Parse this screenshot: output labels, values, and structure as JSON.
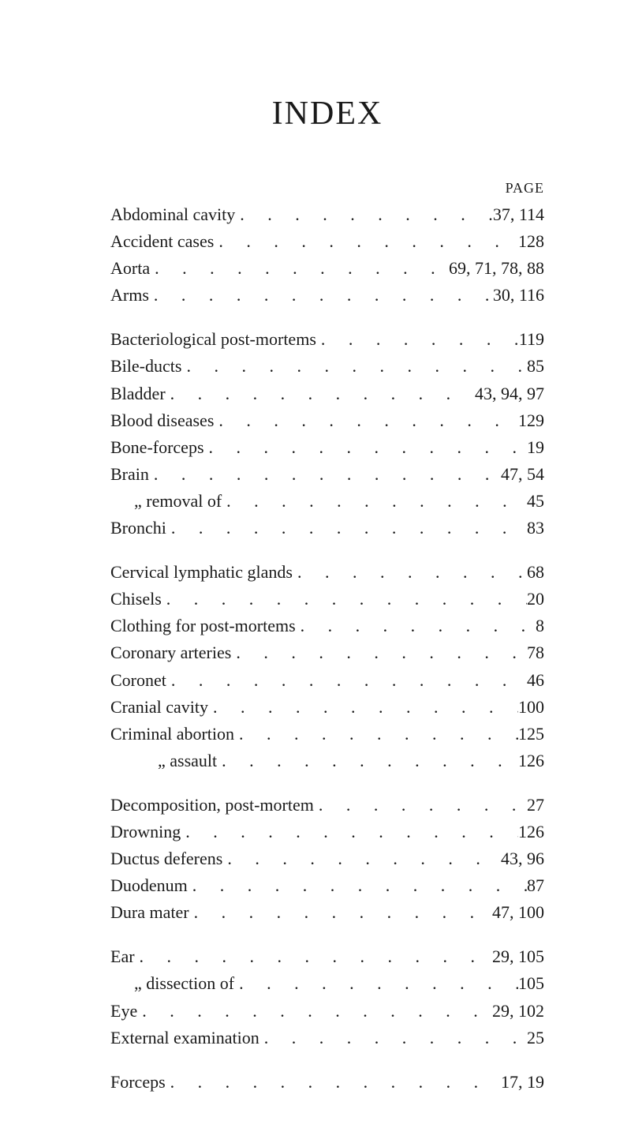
{
  "title": "INDEX",
  "page_label": "PAGE",
  "groups": [
    [
      {
        "label": "Abdominal cavity",
        "indent": 0,
        "pages": "37, 114"
      },
      {
        "label": "Accident cases",
        "indent": 0,
        "pages": "128"
      },
      {
        "label": "Aorta",
        "indent": 0,
        "pages": "69, 71, 78, 88"
      },
      {
        "label": "Arms",
        "indent": 0,
        "pages": "30, 116"
      }
    ],
    [
      {
        "label": "Bacteriological post-mortems",
        "indent": 0,
        "pages": "119"
      },
      {
        "label": "Bile-ducts",
        "indent": 0,
        "pages": "85"
      },
      {
        "label": "Bladder",
        "indent": 0,
        "pages": "43, 94, 97"
      },
      {
        "label": "Blood diseases",
        "indent": 0,
        "pages": "129"
      },
      {
        "label": "Bone-forceps",
        "indent": 0,
        "pages": "19"
      },
      {
        "label": "Brain",
        "indent": 0,
        "pages": "47, 54"
      },
      {
        "label": "„   removal of",
        "indent": 1,
        "pages": "45"
      },
      {
        "label": "Bronchi",
        "indent": 0,
        "pages": "83"
      }
    ],
    [
      {
        "label": "Cervical lymphatic glands",
        "indent": 0,
        "pages": "68"
      },
      {
        "label": "Chisels",
        "indent": 0,
        "pages": "20"
      },
      {
        "label": "Clothing for post-mortems",
        "indent": 0,
        "pages": "8"
      },
      {
        "label": "Coronary arteries",
        "indent": 0,
        "pages": "78"
      },
      {
        "label": "Coronet",
        "indent": 0,
        "pages": "46"
      },
      {
        "label": "Cranial cavity",
        "indent": 0,
        "pages": "100"
      },
      {
        "label": "Criminal abortion",
        "indent": 0,
        "pages": "125"
      },
      {
        "label": "„     assault",
        "indent": 2,
        "pages": "126"
      }
    ],
    [
      {
        "label": "Decomposition, post-mortem",
        "indent": 0,
        "pages": "27"
      },
      {
        "label": "Drowning",
        "indent": 0,
        "pages": "126"
      },
      {
        "label": "Ductus deferens",
        "indent": 0,
        "pages": "43, 96"
      },
      {
        "label": "Duodenum",
        "indent": 0,
        "pages": "87"
      },
      {
        "label": "Dura mater",
        "indent": 0,
        "pages": "47, 100"
      }
    ],
    [
      {
        "label": "Ear",
        "indent": 0,
        "pages": "29, 105"
      },
      {
        "label": "„  dissection of",
        "indent": 1,
        "pages": "105"
      },
      {
        "label": "Eye",
        "indent": 0,
        "pages": "29, 102"
      },
      {
        "label": "External examination",
        "indent": 0,
        "pages": "25"
      }
    ],
    [
      {
        "label": "Forceps",
        "indent": 0,
        "pages": "17, 19"
      }
    ]
  ]
}
